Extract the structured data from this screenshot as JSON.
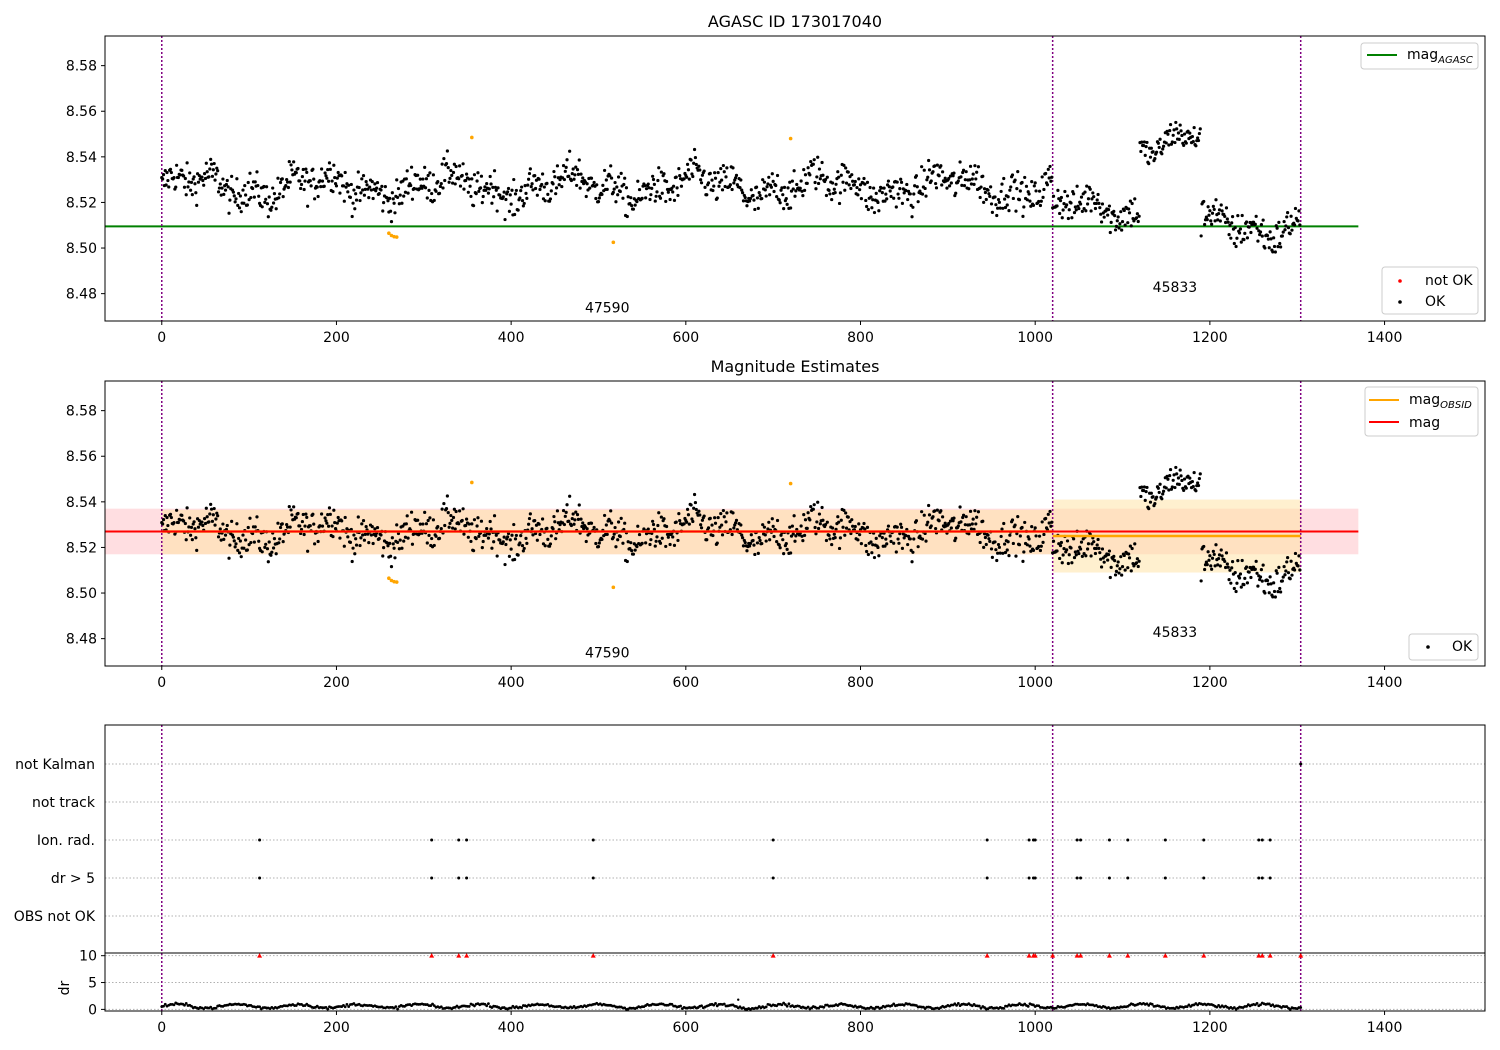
{
  "colors": {
    "ok": "#000000",
    "not_ok": "#ff0000",
    "highlight": "#ffa500",
    "mag_agasc": "#008000",
    "mag_obsid": "#ffa500",
    "mag": "#ff0000",
    "obs_boundary": "#800080",
    "band_mag": "#ffb6bc",
    "band_obsid": "#ffe4a8"
  },
  "chart_data": [
    {
      "type": "scatter",
      "title": "AGASC ID 173017040",
      "xlim": [
        -65,
        1515
      ],
      "ylim": [
        8.468,
        8.593
      ],
      "xticks": [
        0,
        200,
        400,
        600,
        800,
        1000,
        1200,
        1400
      ],
      "yticks": [
        8.48,
        8.5,
        8.52,
        8.54,
        8.56,
        8.58
      ],
      "ytick_labels": [
        "8.48",
        "8.50",
        "8.52",
        "8.54",
        "8.56",
        "8.58"
      ],
      "grid": false,
      "legend_top": {
        "placement": "top-right",
        "entries": [
          {
            "label": "mag",
            "subscript": "AGASC",
            "style": "line",
            "color": "#008000"
          }
        ]
      },
      "legend_bottom": {
        "placement": "bottom-right",
        "entries": [
          {
            "label": "not OK",
            "style": "dot",
            "color": "#ff0000"
          },
          {
            "label": "OK",
            "style": "dot",
            "color": "#000000"
          }
        ]
      },
      "hlines": [
        {
          "name": "mag_AGASC",
          "y": 8.5095,
          "xmin": -65,
          "xmax": 1370,
          "color": "#008000"
        }
      ],
      "obs_boundaries": [
        0,
        1020,
        1304
      ],
      "observations": [
        {
          "obsid": "47590",
          "label_x": 510,
          "label_y": 8.474
        },
        {
          "obsid": "45833",
          "label_x": 1160,
          "label_y": 8.483
        }
      ],
      "series_model": [
        {
          "x_range": [
            0,
            1020
          ],
          "baseline": 8.527,
          "spread": 0.0055
        },
        {
          "x_range": [
            1020,
            1120
          ],
          "baseline": 8.517,
          "spread": 0.0055
        },
        {
          "x_range": [
            1120,
            1190
          ],
          "baseline": 8.547,
          "spread": 0.0045
        },
        {
          "x_range": [
            1190,
            1304
          ],
          "baseline": 8.51,
          "spread": 0.0055
        }
      ],
      "highlight_points": [
        {
          "x": 260,
          "y": 8.5065
        },
        {
          "x": 263,
          "y": 8.5055
        },
        {
          "x": 266,
          "y": 8.505
        },
        {
          "x": 269,
          "y": 8.5048
        },
        {
          "x": 355,
          "y": 8.5485
        },
        {
          "x": 517,
          "y": 8.5025
        },
        {
          "x": 720,
          "y": 8.548
        }
      ]
    },
    {
      "type": "scatter",
      "title": "Magnitude Estimates",
      "xlim": [
        -65,
        1515
      ],
      "ylim": [
        8.468,
        8.593
      ],
      "xticks": [
        0,
        200,
        400,
        600,
        800,
        1000,
        1200,
        1400
      ],
      "yticks": [
        8.48,
        8.5,
        8.52,
        8.54,
        8.56,
        8.58
      ],
      "ytick_labels": [
        "8.48",
        "8.50",
        "8.52",
        "8.54",
        "8.56",
        "8.58"
      ],
      "grid": false,
      "legend_top": {
        "placement": "top-right",
        "entries": [
          {
            "label": "mag",
            "subscript": "OBSID",
            "style": "line",
            "color": "#ffa500"
          },
          {
            "label": "mag",
            "subscript": "",
            "style": "line",
            "color": "#ff0000"
          }
        ]
      },
      "legend_bottom": {
        "placement": "bottom-right",
        "entries": [
          {
            "label": "OK",
            "style": "dot",
            "color": "#000000"
          }
        ]
      },
      "mag": {
        "value": 8.527,
        "band": [
          8.517,
          8.537
        ],
        "xmin": -65,
        "xmax": 1370
      },
      "mag_obsid": [
        {
          "obsid": "47590",
          "value": 8.527,
          "band": [
            8.517,
            8.5365
          ],
          "x_range": [
            0,
            1020
          ]
        },
        {
          "obsid": "45833",
          "value": 8.525,
          "band": [
            8.509,
            8.541
          ],
          "x_range": [
            1020,
            1304
          ]
        }
      ],
      "obs_boundaries": [
        0,
        1020,
        1304
      ],
      "observations": [
        {
          "obsid": "47590",
          "label_x": 510,
          "label_y": 8.474
        },
        {
          "obsid": "45833",
          "label_x": 1160,
          "label_y": 8.483
        }
      ]
    },
    {
      "type": "scatter",
      "title": "",
      "xlim": [
        -65,
        1515
      ],
      "xticks": [
        0,
        200,
        400,
        600,
        800,
        1000,
        1200,
        1400
      ],
      "categories": [
        "not Kalman",
        "not track",
        "Ion. rad.",
        "dr > 5",
        "OBS not OK"
      ],
      "grid": true,
      "obs_boundaries": [
        0,
        1020,
        1304
      ],
      "flagged_x": {
        "Ion. rad.": [
          112,
          309,
          340,
          349,
          494,
          700,
          945,
          993,
          998,
          1000,
          1048,
          1052,
          1085,
          1106,
          1149,
          1193,
          1256,
          1260,
          1269
        ],
        "dr > 5": [
          112,
          309,
          340,
          349,
          494,
          700,
          945,
          993,
          998,
          1000,
          1048,
          1052,
          1085,
          1106,
          1149,
          1193,
          1256,
          1260,
          1269
        ],
        "not Kalman": [
          1304
        ]
      }
    },
    {
      "type": "scatter",
      "title": "",
      "xlim": [
        -65,
        1515
      ],
      "ylim": [
        -0.3,
        10.5
      ],
      "ylabel": "dr",
      "xticks": [
        0,
        200,
        400,
        600,
        800,
        1000,
        1200,
        1400
      ],
      "yticks": [
        0,
        5,
        10
      ],
      "ytick_labels": [
        "0",
        "5",
        "10"
      ],
      "grid": true,
      "obs_boundaries": [
        0,
        1020,
        1304
      ],
      "dr_baseline": 0.6,
      "dr_clipped_marker": {
        "y": 10,
        "color": "#ff0000",
        "x": [
          112,
          309,
          340,
          349,
          494,
          700,
          945,
          993,
          998,
          1000,
          1020,
          1048,
          1052,
          1085,
          1106,
          1149,
          1193,
          1256,
          1260,
          1269,
          1304
        ]
      },
      "dr_outliers": [
        {
          "x": 660,
          "y": 1.8
        }
      ]
    }
  ]
}
